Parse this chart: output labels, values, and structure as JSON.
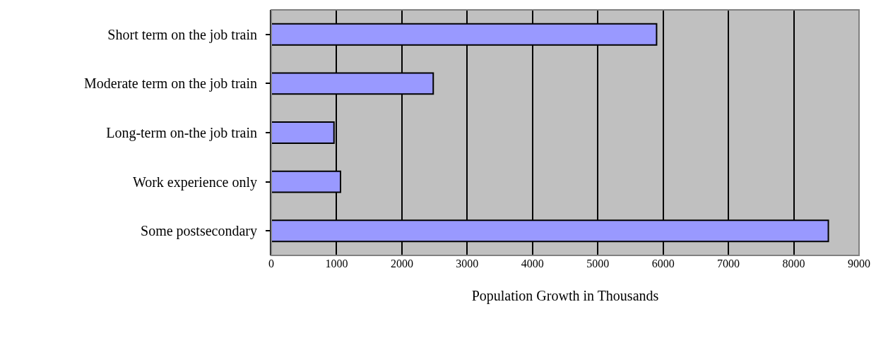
{
  "chart_data": {
    "type": "bar",
    "orientation": "horizontal",
    "xlabel": "Population Growth in Thousands",
    "categories": [
      "Short term on the job train",
      "Moderate term on the job train",
      "Long-term on-the job train",
      "Work experience only",
      "Some postsecondary"
    ],
    "values": [
      5900,
      2480,
      960,
      1060,
      8530
    ],
    "color": "#9999ff",
    "xlim": [
      0,
      9000
    ],
    "xticks": [
      0,
      1000,
      2000,
      3000,
      4000,
      5000,
      6000,
      7000,
      8000,
      9000
    ],
    "grid": "x"
  }
}
